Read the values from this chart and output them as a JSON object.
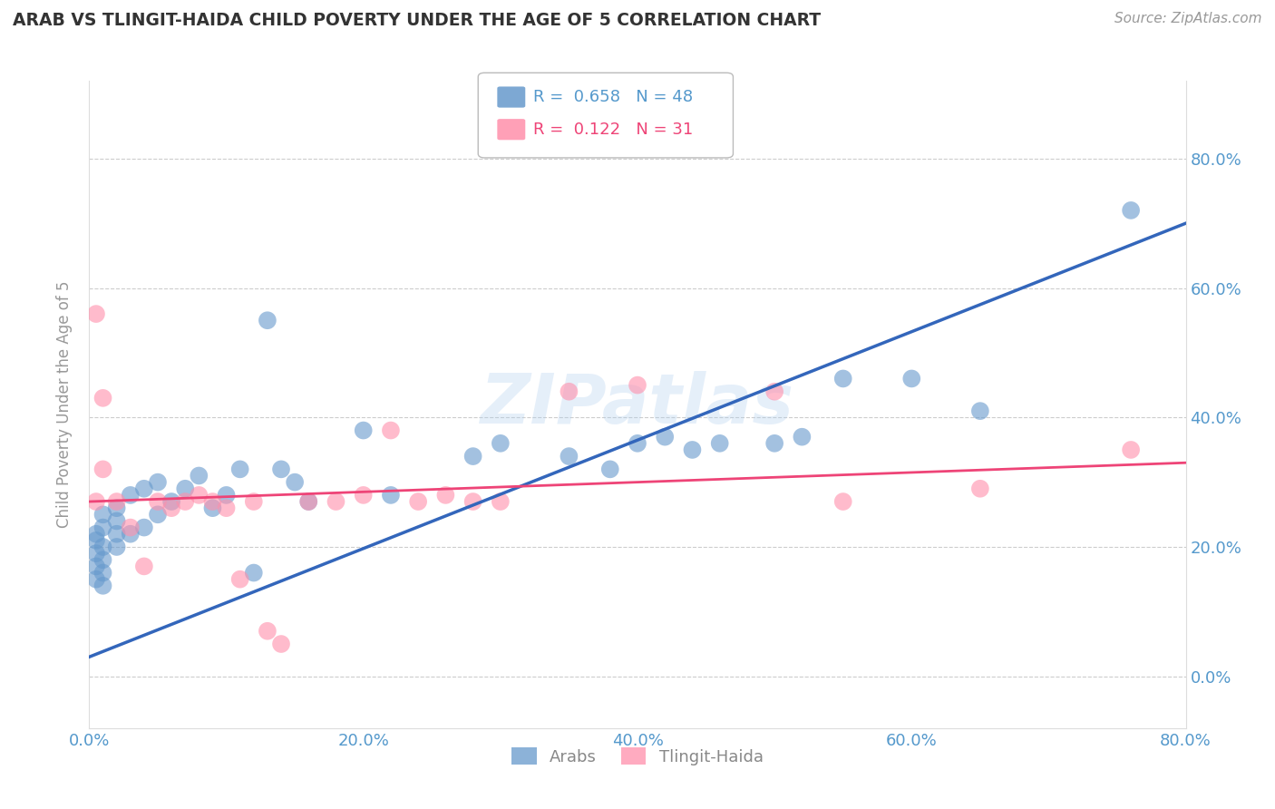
{
  "title": "ARAB VS TLINGIT-HAIDA CHILD POVERTY UNDER THE AGE OF 5 CORRELATION CHART",
  "source": "Source: ZipAtlas.com",
  "ylabel": "Child Poverty Under the Age of 5",
  "xlim": [
    0.0,
    0.8
  ],
  "ylim": [
    -0.08,
    0.92
  ],
  "yticks": [
    0.0,
    0.2,
    0.4,
    0.6,
    0.8
  ],
  "xticks": [
    0.0,
    0.2,
    0.4,
    0.6,
    0.8
  ],
  "arab_R": 0.658,
  "arab_N": 48,
  "tlingit_R": 0.122,
  "tlingit_N": 31,
  "arab_color": "#6699CC",
  "tlingit_color": "#FF8FAB",
  "arab_line_color": "#3366BB",
  "tlingit_line_color": "#EE4477",
  "background_color": "#FFFFFF",
  "grid_color": "#CCCCCC",
  "axis_color": "#5599CC",
  "watermark": "ZIPatlas",
  "arab_x": [
    0.005,
    0.005,
    0.005,
    0.005,
    0.005,
    0.01,
    0.01,
    0.01,
    0.01,
    0.01,
    0.01,
    0.02,
    0.02,
    0.02,
    0.02,
    0.03,
    0.03,
    0.04,
    0.04,
    0.05,
    0.05,
    0.06,
    0.07,
    0.08,
    0.09,
    0.1,
    0.11,
    0.12,
    0.13,
    0.14,
    0.15,
    0.16,
    0.2,
    0.22,
    0.28,
    0.3,
    0.35,
    0.38,
    0.4,
    0.42,
    0.44,
    0.46,
    0.5,
    0.52,
    0.55,
    0.6,
    0.65,
    0.76
  ],
  "arab_y": [
    0.15,
    0.17,
    0.19,
    0.21,
    0.22,
    0.14,
    0.16,
    0.18,
    0.2,
    0.23,
    0.25,
    0.2,
    0.22,
    0.24,
    0.26,
    0.22,
    0.28,
    0.23,
    0.29,
    0.25,
    0.3,
    0.27,
    0.29,
    0.31,
    0.26,
    0.28,
    0.32,
    0.16,
    0.55,
    0.32,
    0.3,
    0.27,
    0.38,
    0.28,
    0.34,
    0.36,
    0.34,
    0.32,
    0.36,
    0.37,
    0.35,
    0.36,
    0.36,
    0.37,
    0.46,
    0.46,
    0.41,
    0.72
  ],
  "tlingit_x": [
    0.005,
    0.005,
    0.01,
    0.01,
    0.02,
    0.03,
    0.04,
    0.05,
    0.06,
    0.07,
    0.08,
    0.09,
    0.1,
    0.11,
    0.12,
    0.13,
    0.14,
    0.16,
    0.18,
    0.2,
    0.22,
    0.24,
    0.26,
    0.28,
    0.3,
    0.35,
    0.4,
    0.5,
    0.55,
    0.65,
    0.76
  ],
  "tlingit_y": [
    0.56,
    0.27,
    0.43,
    0.32,
    0.27,
    0.23,
    0.17,
    0.27,
    0.26,
    0.27,
    0.28,
    0.27,
    0.26,
    0.15,
    0.27,
    0.07,
    0.05,
    0.27,
    0.27,
    0.28,
    0.38,
    0.27,
    0.28,
    0.27,
    0.27,
    0.44,
    0.45,
    0.44,
    0.27,
    0.29,
    0.35
  ]
}
